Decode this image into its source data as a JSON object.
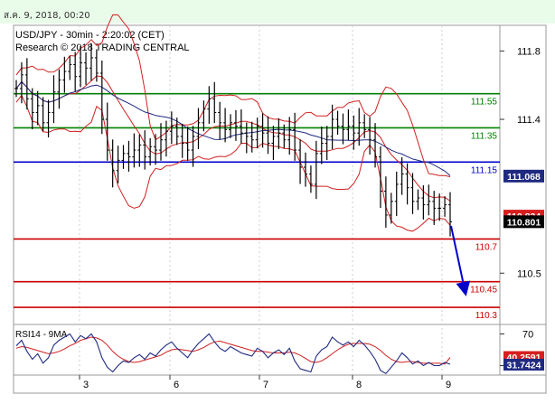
{
  "header": {
    "date_text": "ส.ค. 9, 2018, 00:20"
  },
  "chart_data": {
    "type": "line",
    "title": "USD/JPY - 30min - 2:20:02 (CET)",
    "subtitle": "Research © 2018 TRADING CENTRAL",
    "x_ticks": [
      "3",
      "6",
      "7",
      "8",
      "9"
    ],
    "price_ticks": [
      "111.8",
      "111.4",
      "110.5"
    ],
    "ylim": [
      110.2,
      111.95
    ],
    "levels": [
      {
        "label": "111.55",
        "value": 111.55,
        "color": "#008000"
      },
      {
        "label": "111.35",
        "value": 111.35,
        "color": "#008000"
      },
      {
        "label": "111.15",
        "value": 111.15,
        "color": "#0000cc"
      },
      {
        "label": "110.7",
        "value": 110.7,
        "color": "#cc0000"
      },
      {
        "label": "110.45",
        "value": 110.45,
        "color": "#cc0000"
      },
      {
        "label": "110.3",
        "value": 110.3,
        "color": "#cc0000"
      }
    ],
    "price_badges": [
      {
        "label": "111.068",
        "value": 111.068,
        "color": "#1f2a80"
      },
      {
        "label": "110.834",
        "value": 110.834,
        "color": "#d81f1f"
      },
      {
        "label": "110.801",
        "value": 110.801,
        "color": "#000000"
      }
    ],
    "close_series": [
      111.58,
      111.66,
      111.52,
      111.44,
      111.48,
      111.38,
      111.44,
      111.56,
      111.63,
      111.68,
      111.72,
      111.65,
      111.73,
      111.7,
      111.76,
      111.67,
      111.4,
      111.22,
      111.1,
      111.16,
      111.2,
      111.18,
      111.22,
      111.25,
      111.18,
      111.24,
      111.22,
      111.28,
      111.33,
      111.36,
      111.3,
      111.26,
      111.22,
      111.3,
      111.38,
      111.46,
      111.52,
      111.44,
      111.38,
      111.34,
      111.38,
      111.36,
      111.32,
      111.3,
      111.28,
      111.36,
      111.32,
      111.26,
      111.3,
      111.32,
      111.28,
      111.34,
      111.22,
      111.12,
      111.08,
      111.02,
      111.2,
      111.26,
      111.3,
      111.4,
      111.36,
      111.34,
      111.36,
      111.32,
      111.38,
      111.34,
      111.28,
      111.18,
      110.98,
      110.84,
      110.92,
      111.02,
      111.08,
      111.0,
      110.92,
      110.94,
      110.9,
      110.92,
      110.88,
      110.88,
      110.9,
      110.801
    ],
    "rsi": {
      "label": "RSI14 - 9MA",
      "ticks": [
        "70",
        "30"
      ],
      "ylim": [
        18,
        82
      ],
      "rsi_value": "31.7424",
      "ma_value": "40.2591",
      "rsi_series": [
        55,
        62,
        48,
        38,
        45,
        33,
        40,
        56,
        62,
        66,
        70,
        60,
        68,
        64,
        70,
        60,
        40,
        28,
        22,
        30,
        36,
        34,
        40,
        44,
        38,
        46,
        42,
        50,
        56,
        60,
        52,
        46,
        40,
        50,
        58,
        64,
        70,
        60,
        52,
        48,
        54,
        50,
        46,
        44,
        42,
        52,
        48,
        40,
        46,
        50,
        44,
        52,
        36,
        26,
        24,
        22,
        42,
        50,
        54,
        66,
        60,
        56,
        60,
        54,
        62,
        56,
        48,
        38,
        24,
        20,
        28,
        36,
        46,
        40,
        32,
        36,
        30,
        34,
        30,
        30,
        34,
        31.74
      ],
      "ma_series": [
        52,
        54,
        53,
        51,
        49,
        47,
        45,
        46,
        48,
        51,
        55,
        58,
        62,
        64,
        66,
        65,
        62,
        56,
        48,
        42,
        38,
        35,
        34,
        35,
        37,
        39,
        41,
        43,
        47,
        50,
        51,
        50,
        49,
        48,
        50,
        53,
        57,
        60,
        61,
        59,
        57,
        55,
        53,
        51,
        49,
        48,
        48,
        47,
        46,
        46,
        46,
        47,
        46,
        43,
        39,
        35,
        34,
        36,
        40,
        45,
        50,
        54,
        57,
        58,
        58,
        58,
        57,
        54,
        49,
        43,
        38,
        35,
        34,
        35,
        35,
        34,
        33,
        33,
        33,
        33,
        32,
        40.26
      ]
    }
  }
}
